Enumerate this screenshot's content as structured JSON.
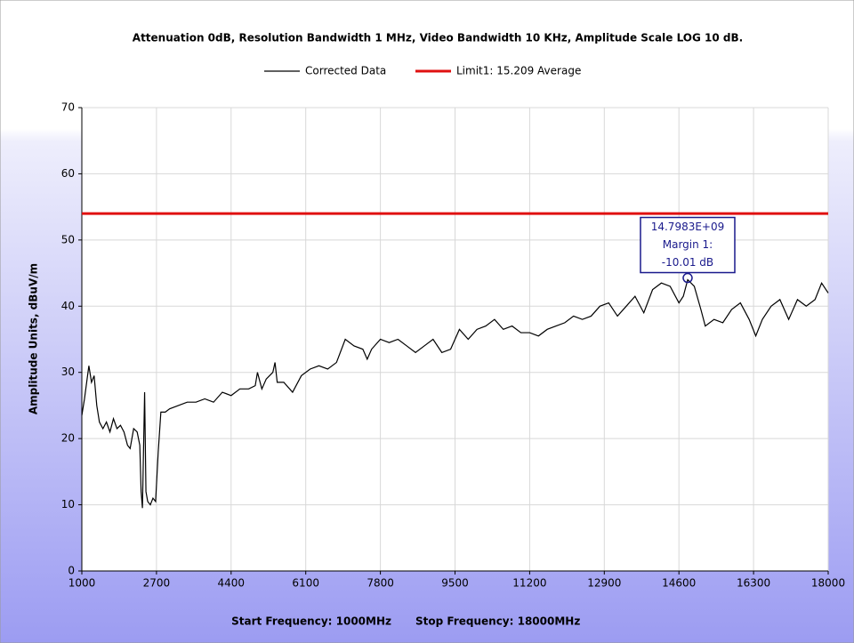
{
  "chart_data": {
    "type": "line",
    "title": "Attenuation 0dB, Resolution Bandwidth 1 MHz, Video Bandwidth 10 KHz, Amplitude Scale LOG 10 dB.",
    "ylabel": "Amplitude Units, dBuV/m",
    "xlabel_start": "Start Frequency: 1000MHz",
    "xlabel_stop": "Stop Frequency: 18000MHz",
    "xlim": [
      1000,
      18000
    ],
    "xticks": [
      1000,
      2700,
      4400,
      6100,
      7800,
      9500,
      11200,
      12900,
      14600,
      16300,
      18000
    ],
    "ylim": [
      0,
      70
    ],
    "yticks": [
      0,
      10,
      20,
      30,
      40,
      50,
      60,
      70
    ],
    "grid": true,
    "legend": "top",
    "series": [
      {
        "name": "Corrected Data",
        "color": "#000000",
        "x": [
          1000,
          1060,
          1120,
          1160,
          1220,
          1280,
          1340,
          1400,
          1480,
          1560,
          1640,
          1720,
          1800,
          1880,
          1960,
          2040,
          2100,
          2180,
          2260,
          2320,
          2350,
          2380,
          2410,
          2430,
          2460,
          2500,
          2560,
          2620,
          2680,
          2740,
          2800,
          2900,
          3000,
          3200,
          3400,
          3600,
          3800,
          4000,
          4200,
          4400,
          4600,
          4800,
          4950,
          5000,
          5100,
          5200,
          5350,
          5400,
          5450,
          5600,
          5800,
          6000,
          6200,
          6400,
          6600,
          6800,
          7000,
          7200,
          7400,
          7500,
          7600,
          7800,
          8000,
          8200,
          8400,
          8600,
          8800,
          9000,
          9200,
          9400,
          9600,
          9800,
          10000,
          10200,
          10400,
          10600,
          10800,
          11000,
          11200,
          11400,
          11600,
          11800,
          12000,
          12200,
          12400,
          12600,
          12800,
          13000,
          13200,
          13400,
          13600,
          13800,
          14000,
          14200,
          14400,
          14600,
          14700,
          14800,
          14950,
          15100,
          15200,
          15400,
          15600,
          15800,
          16000,
          16200,
          16350,
          16500,
          16700,
          16900,
          17100,
          17300,
          17500,
          17700,
          17850,
          18000
        ],
        "values": [
          23.5,
          26,
          29,
          31,
          28.5,
          29.5,
          25,
          22.5,
          21.5,
          22.5,
          21,
          23,
          21.5,
          22,
          21,
          19,
          18.5,
          21.5,
          21,
          19,
          12,
          9.5,
          20,
          27,
          12,
          10.5,
          10,
          11,
          10.5,
          18,
          24,
          24,
          24.5,
          25,
          25.5,
          25.5,
          26,
          25.5,
          27,
          26.5,
          27.5,
          27.5,
          28,
          30,
          27.5,
          29,
          30,
          31.5,
          28.5,
          28.5,
          27,
          29.5,
          30.5,
          31,
          30.5,
          31.5,
          35,
          34,
          33.5,
          32,
          33.5,
          35,
          34.5,
          35,
          34,
          33,
          34,
          35,
          33,
          33.5,
          36.5,
          35,
          36.5,
          37,
          38,
          36.5,
          37,
          36,
          36,
          35.5,
          36.5,
          37,
          37.5,
          38.5,
          38,
          38.5,
          40,
          40.5,
          38.5,
          40,
          41.5,
          39,
          42.5,
          43.5,
          43,
          40.5,
          41.5,
          44,
          43,
          39.5,
          37,
          38,
          37.5,
          39.5,
          40.5,
          38,
          35.5,
          38,
          40,
          41,
          38,
          41,
          40,
          41,
          43.5,
          42
        ]
      },
      {
        "name": "Limit1: 15.209 Average",
        "color": "#e01010",
        "x": [
          1000,
          18000
        ],
        "values": [
          54,
          54
        ]
      }
    ],
    "annotation": {
      "x": 14798.3,
      "y": 44,
      "lines": [
        "14.7983E+09",
        "Margin 1:",
        "-10.01 dB"
      ],
      "color": "#1a1a8c"
    }
  }
}
